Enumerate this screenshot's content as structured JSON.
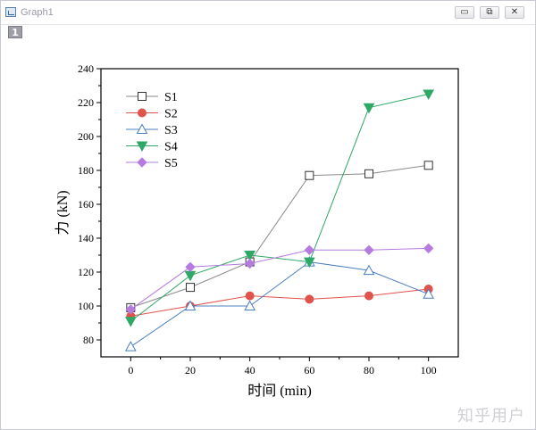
{
  "window": {
    "title": "Graph1",
    "layer_tab": "1",
    "minimize_symbol": "▭",
    "restore_symbol": "⧉",
    "close_symbol": "✕"
  },
  "watermark": "知乎用户",
  "chart_data": {
    "type": "line",
    "title": "",
    "xlabel": "时间 (min)",
    "ylabel": "力 (kN)",
    "x": [
      0,
      20,
      40,
      60,
      80,
      100
    ],
    "xlim": [
      -10,
      110
    ],
    "ylim": [
      70,
      240
    ],
    "xticks": [
      0,
      20,
      40,
      60,
      80,
      100
    ],
    "yticks": [
      80,
      100,
      120,
      140,
      160,
      180,
      200,
      220,
      240
    ],
    "grid": false,
    "legend_position": "top-left",
    "series": [
      {
        "name": "S1",
        "values": [
          99,
          111,
          126,
          177,
          178,
          183
        ],
        "color": "#8a8a8a",
        "marker": "square-open"
      },
      {
        "name": "S2",
        "values": [
          94,
          100,
          106,
          104,
          106,
          110
        ],
        "color": "#e0524c",
        "marker": "circle"
      },
      {
        "name": "S3",
        "values": [
          76,
          100,
          100,
          126,
          121,
          107
        ],
        "color": "#4a7fc0",
        "marker": "triangle-up-open"
      },
      {
        "name": "S4",
        "values": [
          91,
          118,
          130,
          126,
          217,
          225
        ],
        "color": "#2fa866",
        "marker": "triangle-down"
      },
      {
        "name": "S5",
        "values": [
          98,
          123,
          125,
          133,
          133,
          134
        ],
        "color": "#b67be0",
        "marker": "diamond"
      }
    ]
  }
}
